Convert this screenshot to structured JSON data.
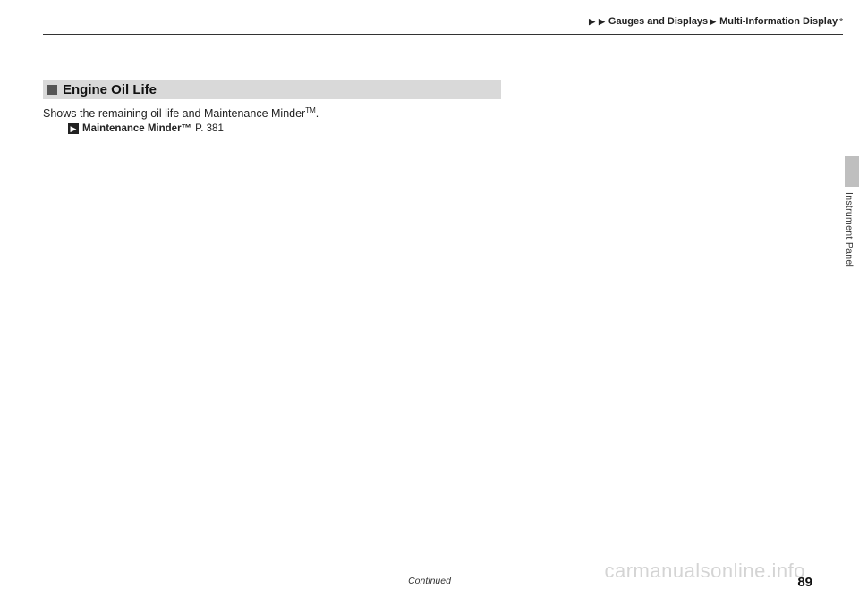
{
  "breadcrumb": {
    "level1": "Gauges and Displays",
    "level2": "Multi-Information Display",
    "asterisk": "*"
  },
  "section": {
    "title": "Engine Oil Life"
  },
  "body": {
    "line1_a": "Shows the remaining oil life and Maintenance Minder",
    "line1_tm": "TM",
    "line1_b": "."
  },
  "xref": {
    "label": "Maintenance Minder™",
    "page_prefix": "P.",
    "page": "381"
  },
  "side": {
    "label": "Instrument Panel"
  },
  "footer": {
    "continued": "Continued",
    "page_number": "89"
  },
  "watermark": {
    "text": "carmanualsonline.info"
  },
  "colors": {
    "heading_bg": "#d9d9d9",
    "square": "#555555",
    "rule": "#333333",
    "tab": "#bfbfbf"
  }
}
